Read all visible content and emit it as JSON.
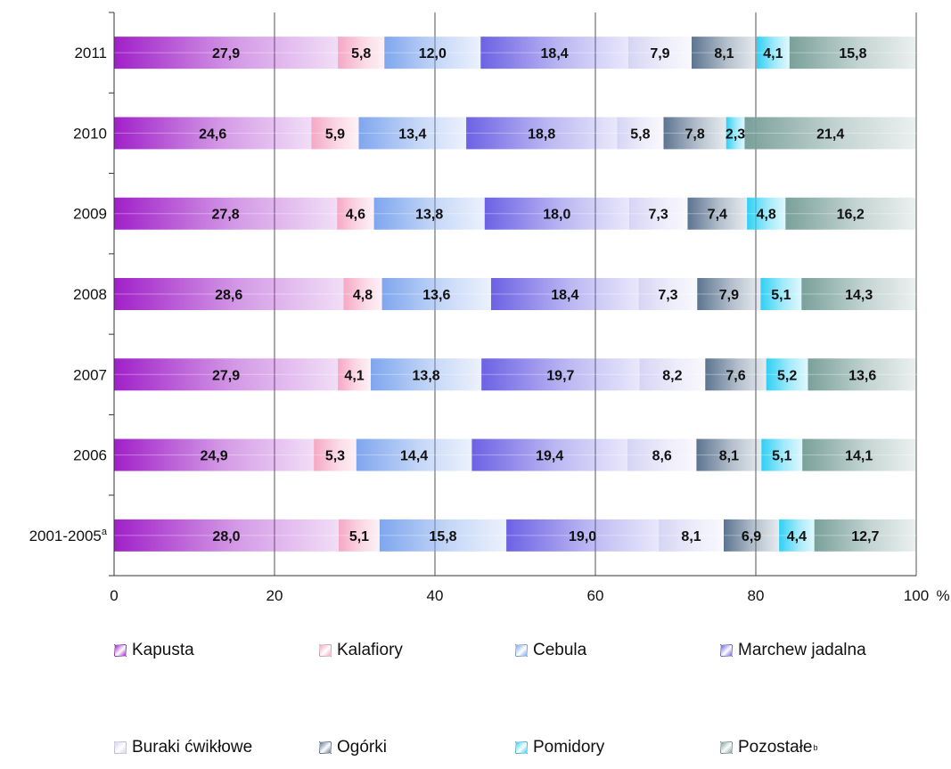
{
  "chart_data": {
    "type": "bar",
    "orientation": "horizontal",
    "stacked": true,
    "title": "",
    "xlabel": "",
    "ylabel": "",
    "unit_label": "%",
    "xlim": [
      0,
      100
    ],
    "x_ticks": [
      "0",
      "20",
      "40",
      "60",
      "80",
      "100"
    ],
    "grid": true,
    "legend_position": "bottom",
    "categories": [
      {
        "label": "2011",
        "sup": ""
      },
      {
        "label": "2010",
        "sup": ""
      },
      {
        "label": "2009",
        "sup": ""
      },
      {
        "label": "2008",
        "sup": ""
      },
      {
        "label": "2007",
        "sup": ""
      },
      {
        "label": "2006",
        "sup": ""
      },
      {
        "label": "2001-2005",
        "sup": "a"
      }
    ],
    "series": [
      {
        "name": "Kapusta",
        "sup": "",
        "color": "#a020c8",
        "values": [
          27.9,
          24.6,
          27.8,
          28.6,
          27.9,
          24.9,
          28.0
        ],
        "labels": [
          "27,9",
          "24,6",
          "27,8",
          "28,6",
          "27,9",
          "24,9",
          "28,0"
        ]
      },
      {
        "name": "Kalafiory",
        "sup": "",
        "color": "#f5a8c4",
        "values": [
          5.8,
          5.9,
          4.6,
          4.8,
          4.1,
          5.3,
          5.1
        ],
        "labels": [
          "5,8",
          "5,9",
          "4,6",
          "4,8",
          "4,1",
          "5,3",
          "5,1"
        ]
      },
      {
        "name": "Cebula",
        "sup": "",
        "color": "#7fa6ee",
        "values": [
          12.0,
          13.4,
          13.8,
          13.6,
          13.8,
          14.4,
          15.8
        ],
        "labels": [
          "12,0",
          "13,4",
          "13,8",
          "13,6",
          "13,8",
          "14,4",
          "15,8"
        ]
      },
      {
        "name": "Marchew jadalna",
        "sup": "",
        "color": "#6c62e4",
        "values": [
          18.4,
          18.8,
          18.0,
          18.4,
          19.7,
          19.4,
          19.0
        ],
        "labels": [
          "18,4",
          "18,8",
          "18,0",
          "18,4",
          "19,7",
          "19,4",
          "19,0"
        ]
      },
      {
        "name": "Buraki ćwikłowe",
        "sup": "",
        "color": "#d6d4f4",
        "values": [
          7.9,
          5.8,
          7.3,
          7.3,
          8.2,
          8.6,
          8.1
        ],
        "labels": [
          "7,9",
          "5,8",
          "7,3",
          "7,3",
          "8,2",
          "8,6",
          "8,1"
        ]
      },
      {
        "name": "Ogórki",
        "sup": "",
        "color": "#5c7490",
        "values": [
          8.1,
          7.8,
          7.4,
          7.9,
          7.6,
          8.1,
          6.9
        ],
        "labels": [
          "8,1",
          "7,8",
          "7,4",
          "7,9",
          "7,6",
          "8,1",
          "6,9"
        ]
      },
      {
        "name": "Pomidory",
        "sup": "",
        "color": "#30d0f4",
        "values": [
          4.1,
          2.3,
          4.8,
          5.1,
          5.2,
          5.1,
          4.4
        ],
        "labels": [
          "4,1",
          "2,3",
          "4,8",
          "5,1",
          "5,2",
          "5,1",
          "4,4"
        ]
      },
      {
        "name": "Pozostałe",
        "sup": "b",
        "color": "#7aa09a",
        "values": [
          15.8,
          21.4,
          16.2,
          14.3,
          13.6,
          14.1,
          12.7
        ],
        "labels": [
          "15,8",
          "21,4",
          "16,2",
          "14,3",
          "13,6",
          "14,1",
          "12,7"
        ]
      }
    ]
  }
}
